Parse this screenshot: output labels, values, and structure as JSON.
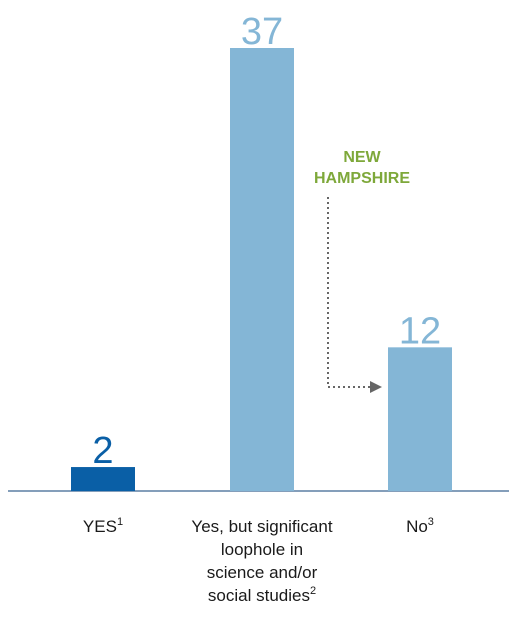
{
  "chart_data": {
    "type": "bar",
    "categories": [
      {
        "lines": [
          "YES"
        ],
        "note": "1"
      },
      {
        "lines": [
          "Yes, but significant",
          "loophole in",
          "science and/or",
          "social studies"
        ],
        "note": "2"
      },
      {
        "lines": [
          "No"
        ],
        "note": "3"
      }
    ],
    "values": [
      2,
      37,
      12
    ],
    "value_labels": [
      "2",
      "37",
      "12"
    ],
    "bar_colors": [
      "#0a5fa6",
      "#84b6d6",
      "#84b6d6"
    ],
    "label_colors": [
      "#0a5fa6",
      "#84b6d6",
      "#84b6d6"
    ],
    "annotation": {
      "lines": [
        "NEW",
        "HAMPSHIRE"
      ],
      "color": "#7ea83a",
      "arrow_color": "#666666",
      "arrow_to_category": 2
    }
  }
}
